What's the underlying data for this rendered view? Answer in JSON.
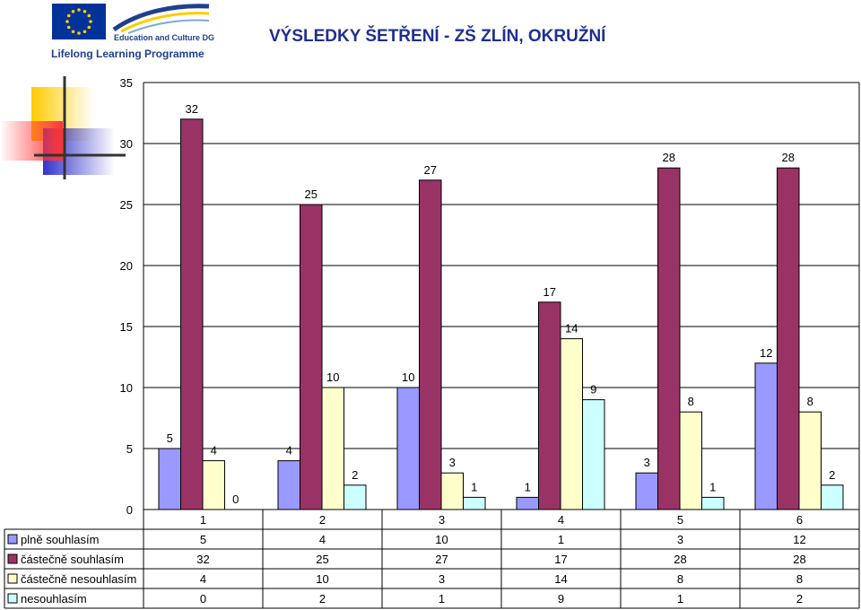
{
  "header": {
    "logo_dg_text": "Education and Culture DG",
    "logo_llp_text": "Lifelong Learning Programme",
    "title": "VÝSLEDKY ŠETŘENÍ - ZŠ ZLÍN, OKRUŽNÍ"
  },
  "chart_data": {
    "type": "bar",
    "categories": [
      "1",
      "2",
      "3",
      "4",
      "5",
      "6"
    ],
    "ylim": [
      0,
      35
    ],
    "yticks": [
      "0",
      "5",
      "10",
      "15",
      "20",
      "25",
      "30",
      "35"
    ],
    "grid": true,
    "legend_placement": "data table below chart",
    "series": [
      {
        "name": "plně souhlasím",
        "color": "#9999ff",
        "values": [
          5,
          4,
          10,
          1,
          3,
          12
        ]
      },
      {
        "name": "částečně souhlasím",
        "color": "#993366",
        "values": [
          32,
          25,
          27,
          17,
          28,
          28
        ]
      },
      {
        "name": "částečně nesouhlasím",
        "color": "#ffffcc",
        "values": [
          4,
          10,
          3,
          14,
          8,
          8
        ]
      },
      {
        "name": "nesouhlasím",
        "color": "#ccffff",
        "values": [
          0,
          2,
          1,
          9,
          1,
          2
        ]
      }
    ]
  }
}
